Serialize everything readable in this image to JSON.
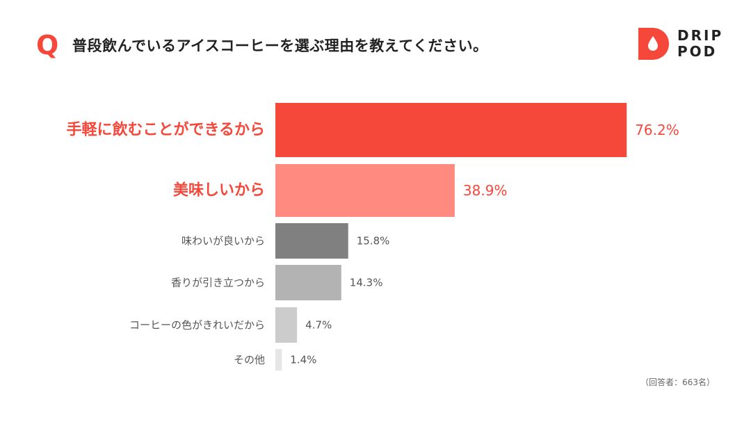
{
  "header": {
    "q_mark": "Q",
    "question": "普段飲んでいるアイスコーヒーを選ぶ理由を教えてください。"
  },
  "logo": {
    "line1": "DRIP",
    "line2": "POD",
    "icon": "drop-icon"
  },
  "note": "（回答者：663名）",
  "colors": {
    "accent": "#f5473a",
    "accent_light": "#ff8a80",
    "dark_gray": "#808080",
    "mid_gray": "#b3b3b3",
    "light_gray": "#cccccc",
    "lightest_gray": "#e6e6e6"
  },
  "chart_data": {
    "type": "bar",
    "orientation": "horizontal",
    "categories": [
      "手軽に飲むことができるから",
      "美味しいから",
      "味わいが良いから",
      "香りが引き立つから",
      "コーヒーの色がきれいだから",
      "その他"
    ],
    "values": [
      76.2,
      38.9,
      15.8,
      14.3,
      4.7,
      1.4
    ],
    "value_labels": [
      "76.2%",
      "38.9%",
      "15.8%",
      "14.3%",
      "4.7%",
      "1.4%"
    ],
    "unit": "%",
    "xlim": [
      0,
      100
    ],
    "grid": false,
    "legend": "none",
    "bar_colors": [
      "#f5473a",
      "#ff8a80",
      "#808080",
      "#b3b3b3",
      "#cccccc",
      "#e6e6e6"
    ],
    "highlighted": [
      true,
      true,
      false,
      false,
      false,
      false
    ]
  }
}
